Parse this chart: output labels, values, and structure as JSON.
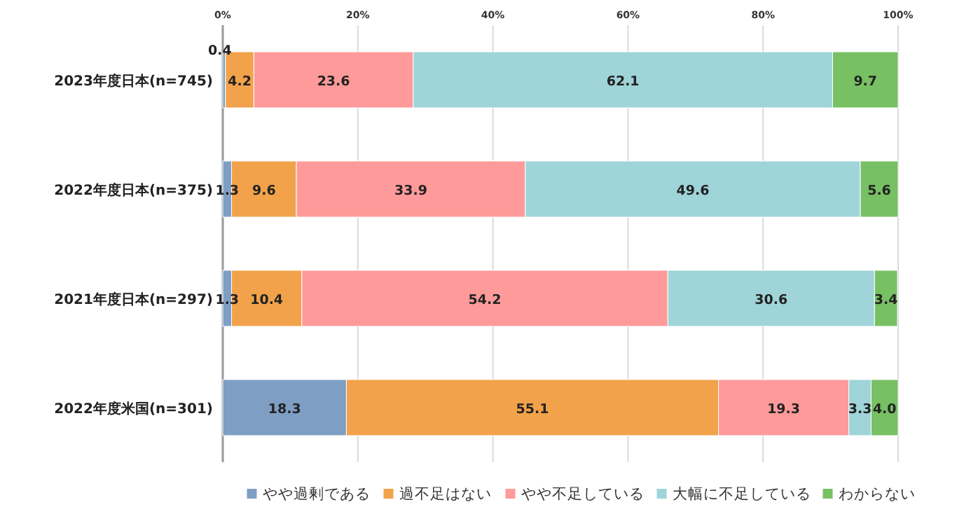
{
  "chart_data": {
    "type": "bar",
    "orientation": "horizontal",
    "stacked": true,
    "grid": "x",
    "legend": "bottom",
    "categories": [
      "2023年度日本(n=745)",
      "2022年度日本(n=375)",
      "2021年度日本(n=297)",
      "2022年度米国(n=301)"
    ],
    "xlim": [
      0,
      100
    ],
    "xticks": [
      {
        "value": 0,
        "label": "0%"
      },
      {
        "value": 20,
        "label": "20%"
      },
      {
        "value": 40,
        "label": "40%"
      },
      {
        "value": 60,
        "label": "60%"
      },
      {
        "value": 80,
        "label": "80%"
      },
      {
        "value": 100,
        "label": "100%"
      }
    ],
    "series": [
      {
        "name": "やや過剰である",
        "color": "#7f9ec4",
        "values": [
          0.4,
          1.3,
          1.3,
          18.3
        ],
        "value_labels": [
          "0.4",
          "1.3",
          "1.3",
          "18.3"
        ]
      },
      {
        "name": "過不足はない",
        "color": "#f2a24a",
        "values": [
          4.2,
          9.6,
          10.4,
          55.1
        ],
        "value_labels": [
          "4.2",
          "9.6",
          "10.4",
          "55.1"
        ]
      },
      {
        "name": "やや不足している",
        "color": "#ff9a9a",
        "values": [
          23.6,
          33.9,
          54.2,
          19.3
        ],
        "value_labels": [
          "23.6",
          "33.9",
          "54.2",
          "19.3"
        ]
      },
      {
        "name": "大幅に不足している",
        "color": "#9fd4d9",
        "values": [
          62.1,
          49.6,
          30.6,
          3.3
        ],
        "value_labels": [
          "62.1",
          "49.6",
          "30.6",
          "3.3"
        ]
      },
      {
        "name": "わからない",
        "color": "#77c063",
        "values": [
          9.7,
          5.6,
          3.4,
          4.0
        ],
        "value_labels": [
          "9.7",
          "5.6",
          "3.4",
          "4.0"
        ]
      }
    ]
  }
}
